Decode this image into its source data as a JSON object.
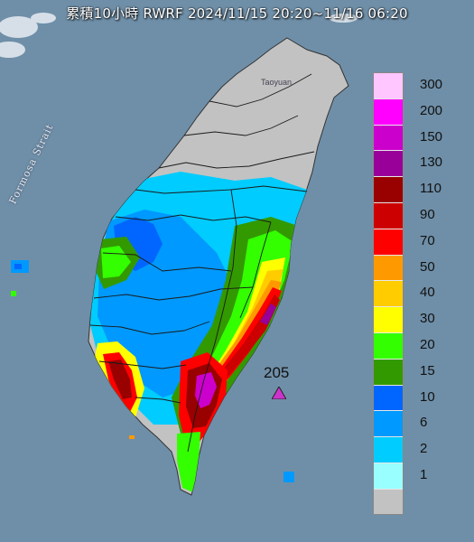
{
  "map": {
    "title": "累積10小時 RWRF 2024/11/15 20:20~11/16 06:20",
    "strait_label": "Formosa Strait",
    "city_label": "Taoyuan",
    "max_value_label": "205",
    "colors": {
      "sea": "#6f8fa8",
      "land": "#c2c2c2",
      "boundary": "#1a1a1a",
      "max_marker": "#cc33cc"
    }
  },
  "legend": {
    "items": [
      {
        "label": "300",
        "color": "#ffc6ff"
      },
      {
        "label": "200",
        "color": "#ff00ff"
      },
      {
        "label": "150",
        "color": "#cc00cc"
      },
      {
        "label": "130",
        "color": "#990099"
      },
      {
        "label": "110",
        "color": "#990000"
      },
      {
        "label": "90",
        "color": "#cc0000"
      },
      {
        "label": "70",
        "color": "#ff0000"
      },
      {
        "label": "50",
        "color": "#ff9900"
      },
      {
        "label": "40",
        "color": "#ffcc00"
      },
      {
        "label": "30",
        "color": "#ffff00"
      },
      {
        "label": "20",
        "color": "#33ff00"
      },
      {
        "label": "15",
        "color": "#339900"
      },
      {
        "label": "10",
        "color": "#0066ff"
      },
      {
        "label": "6",
        "color": "#0099ff"
      },
      {
        "label": "2",
        "color": "#00ccff"
      },
      {
        "label": "1",
        "color": "#99ffff"
      },
      {
        "label": "",
        "color": "#c2c2c2"
      }
    ]
  }
}
